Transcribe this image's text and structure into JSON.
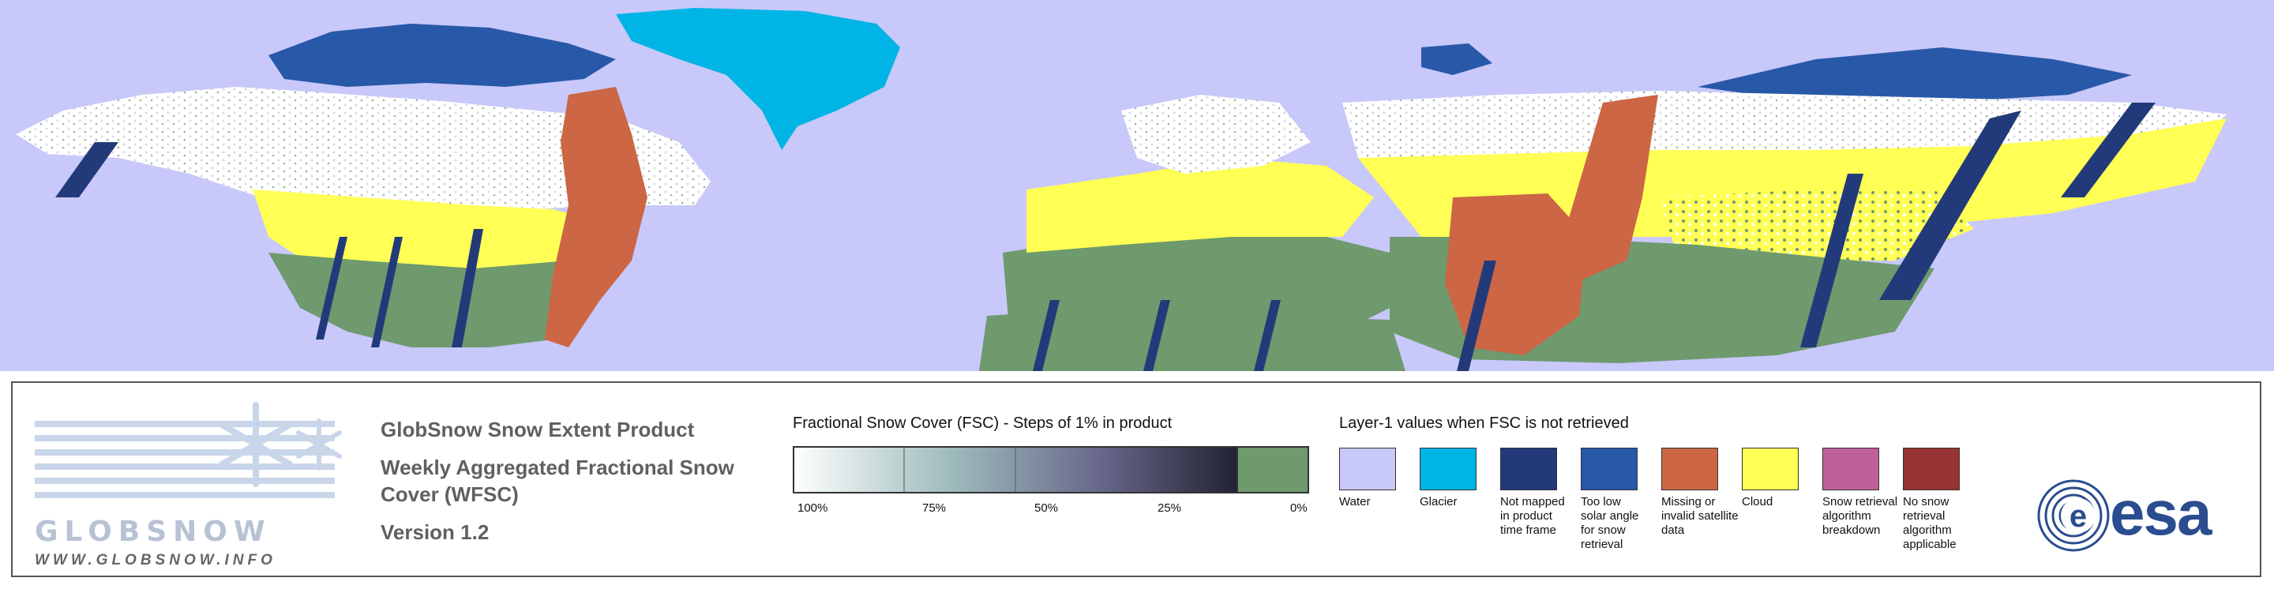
{
  "map": {
    "colors": {
      "water": "#c8c8fa",
      "glacier": "#00b4e6",
      "not_mapped": "#233a7a",
      "low_sun": "#2858a8",
      "missing": "#cc6644",
      "cloud": "#ffff55",
      "snow_free": "#6e9a6e",
      "snow": "#ffffff"
    }
  },
  "logo": {
    "word": "GLOBSNOW",
    "url": "WWW.GLOBSNOW.INFO"
  },
  "product": {
    "title": "GlobSnow Snow Extent Product",
    "subtitle": "Weekly Aggregated Fractional Snow Cover (WFSC)",
    "version": "Version 1.2"
  },
  "fsc_legend": {
    "title": "Fractional Snow Cover (FSC) - Steps of 1% in product",
    "ticks": [
      "100%",
      "75%",
      "50%",
      "25%",
      "0%"
    ],
    "gradient_start": "#ffffff",
    "gradient_end": "#222233",
    "zero_color": "#6e9a6e"
  },
  "layer1_legend": {
    "title": "Layer-1 values when FSC is not retrieved",
    "items": [
      {
        "label": "Water",
        "color": "#c8c8fa"
      },
      {
        "label": "Glacier",
        "color": "#00b4e6"
      },
      {
        "label": "Not mapped in product time frame",
        "color": "#233a7a"
      },
      {
        "label": "Too low solar angle for snow retrieval",
        "color": "#2858a8"
      },
      {
        "label": "Missing or invalid satellite data",
        "color": "#cc6644"
      },
      {
        "label": "Cloud",
        "color": "#ffff55"
      },
      {
        "label": "Snow retrieval algorithm breakdown",
        "color": "#c0609a"
      },
      {
        "label": "No snow retrieval algorithm applicable",
        "color": "#993333"
      }
    ]
  },
  "esa_logo": {
    "text": "esa",
    "color": "#2a4d8f"
  }
}
